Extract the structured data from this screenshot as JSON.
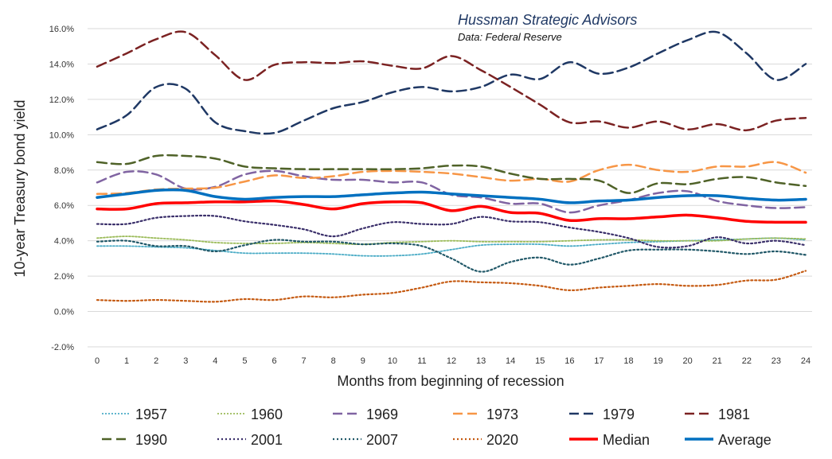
{
  "chart_data": {
    "type": "line",
    "source_title": "Hussman Strategic Advisors",
    "source_subtitle": "Data: Federal Reserve",
    "xlabel": "Months from beginning of recession",
    "ylabel": "10-year Treasury bond yield",
    "x": [
      0,
      1,
      2,
      3,
      4,
      5,
      6,
      7,
      8,
      9,
      10,
      11,
      12,
      13,
      14,
      15,
      16,
      17,
      18,
      19,
      20,
      21,
      22,
      23,
      24
    ],
    "ylim": [
      -2.0,
      16.0
    ],
    "ytick_step": 2.0,
    "ytick_labels": [
      "-2.0%",
      "0.0%",
      "2.0%",
      "4.0%",
      "6.0%",
      "8.0%",
      "10.0%",
      "12.0%",
      "14.0%",
      "16.0%"
    ],
    "grid": true,
    "legend_position": "bottom",
    "series": [
      {
        "name": "1957",
        "color": "#4bacc6",
        "dash": "2,2",
        "width": 1.8,
        "values": [
          3.7,
          3.7,
          3.65,
          3.6,
          3.45,
          3.3,
          3.3,
          3.3,
          3.25,
          3.15,
          3.15,
          3.25,
          3.5,
          3.75,
          3.8,
          3.8,
          3.7,
          3.8,
          3.9,
          3.95,
          4.0,
          4.05,
          4.1,
          4.15,
          4.05
        ]
      },
      {
        "name": "1960",
        "color": "#9bbb59",
        "dash": "2,2",
        "width": 1.8,
        "values": [
          4.15,
          4.25,
          4.15,
          4.05,
          3.9,
          3.85,
          3.85,
          3.9,
          3.85,
          3.8,
          3.9,
          3.95,
          4.0,
          3.95,
          3.95,
          3.95,
          4.0,
          4.05,
          4.05,
          4.0,
          4.0,
          4.0,
          4.1,
          4.15,
          4.1
        ]
      },
      {
        "name": "1969",
        "color": "#8064a2",
        "dash": "12,6",
        "width": 2.5,
        "values": [
          7.3,
          7.9,
          7.75,
          6.95,
          7.05,
          7.75,
          7.95,
          7.65,
          7.45,
          7.45,
          7.3,
          7.3,
          6.6,
          6.45,
          6.1,
          6.1,
          5.6,
          6.0,
          6.3,
          6.7,
          6.8,
          6.25,
          6.0,
          5.85,
          5.9
        ]
      },
      {
        "name": "1973",
        "color": "#f79646",
        "dash": "12,6",
        "width": 2.5,
        "values": [
          6.65,
          6.7,
          6.9,
          6.95,
          7.0,
          7.35,
          7.7,
          7.55,
          7.65,
          7.9,
          7.95,
          7.9,
          7.8,
          7.6,
          7.4,
          7.5,
          7.35,
          8.0,
          8.3,
          8.0,
          7.9,
          8.2,
          8.2,
          8.45,
          7.85
        ]
      },
      {
        "name": "1979",
        "color": "#1f3864",
        "dash": "12,6",
        "width": 2.5,
        "values": [
          10.3,
          11.1,
          12.7,
          12.6,
          10.7,
          10.2,
          10.1,
          10.8,
          11.5,
          11.85,
          12.4,
          12.7,
          12.45,
          12.7,
          13.4,
          13.15,
          14.1,
          13.45,
          13.8,
          14.6,
          15.35,
          15.8,
          14.6,
          13.1,
          14.0
        ]
      },
      {
        "name": "1981",
        "color": "#7b2222",
        "dash": "12,6",
        "width": 2.5,
        "values": [
          13.85,
          14.6,
          15.4,
          15.8,
          14.5,
          13.1,
          13.95,
          14.1,
          14.05,
          14.15,
          13.9,
          13.75,
          14.45,
          13.65,
          12.7,
          11.7,
          10.7,
          10.75,
          10.4,
          10.75,
          10.3,
          10.6,
          10.25,
          10.8,
          10.95
        ]
      },
      {
        "name": "1990",
        "color": "#4f6228",
        "dash": "12,6",
        "width": 2.5,
        "values": [
          8.45,
          8.35,
          8.8,
          8.8,
          8.65,
          8.2,
          8.1,
          8.05,
          8.05,
          8.05,
          8.05,
          8.1,
          8.25,
          8.2,
          7.8,
          7.5,
          7.5,
          7.4,
          6.7,
          7.25,
          7.2,
          7.5,
          7.6,
          7.3,
          7.1
        ]
      },
      {
        "name": "2001",
        "color": "#3a2f6a",
        "dash": "2,3",
        "width": 2.2,
        "values": [
          4.95,
          4.95,
          5.3,
          5.4,
          5.4,
          5.1,
          4.9,
          4.65,
          4.25,
          4.7,
          5.05,
          4.95,
          4.95,
          5.35,
          5.1,
          5.05,
          4.75,
          4.5,
          4.15,
          3.65,
          3.7,
          4.2,
          3.85,
          4.0,
          3.75
        ]
      },
      {
        "name": "2007",
        "color": "#215868",
        "dash": "2,3",
        "width": 2.2,
        "values": [
          3.95,
          4.0,
          3.7,
          3.7,
          3.4,
          3.75,
          4.05,
          3.95,
          3.95,
          3.8,
          3.85,
          3.7,
          3.0,
          2.25,
          2.8,
          3.05,
          2.65,
          3.0,
          3.45,
          3.5,
          3.5,
          3.4,
          3.25,
          3.4,
          3.2
        ]
      },
      {
        "name": "2020",
        "color": "#c55a11",
        "dash": "2,3",
        "width": 2.2,
        "values": [
          0.65,
          0.6,
          0.65,
          0.6,
          0.55,
          0.7,
          0.65,
          0.85,
          0.8,
          0.95,
          1.05,
          1.35,
          1.7,
          1.65,
          1.6,
          1.45,
          1.2,
          1.35,
          1.45,
          1.55,
          1.45,
          1.5,
          1.75,
          1.8,
          2.3
        ]
      },
      {
        "name": "Median",
        "color": "#ff0000",
        "dash": "",
        "width": 3.5,
        "values": [
          5.8,
          5.8,
          6.1,
          6.15,
          6.2,
          6.2,
          6.25,
          6.05,
          5.8,
          6.1,
          6.2,
          6.15,
          5.7,
          5.95,
          5.6,
          5.55,
          5.15,
          5.25,
          5.25,
          5.35,
          5.45,
          5.3,
          5.1,
          5.05,
          5.05
        ]
      },
      {
        "name": "Average",
        "color": "#0070c0",
        "dash": "",
        "width": 3.5,
        "values": [
          6.45,
          6.65,
          6.85,
          6.85,
          6.5,
          6.35,
          6.45,
          6.5,
          6.5,
          6.6,
          6.7,
          6.75,
          6.65,
          6.55,
          6.45,
          6.35,
          6.15,
          6.25,
          6.3,
          6.45,
          6.55,
          6.55,
          6.4,
          6.3,
          6.35
        ]
      }
    ]
  }
}
